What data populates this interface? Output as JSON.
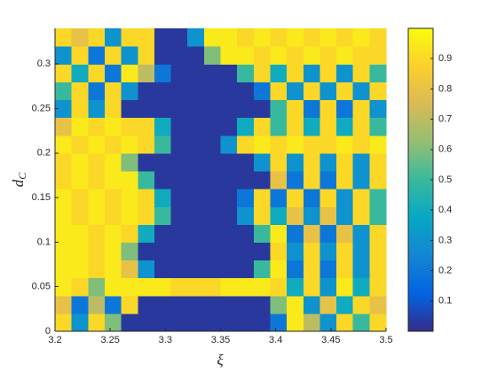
{
  "chart_data": {
    "type": "heatmap",
    "xlabel": "ξ",
    "ylabel": "d",
    "ylabel_subscript": "C",
    "colormap": "parula",
    "xlim": [
      3.2,
      3.5
    ],
    "ylim": [
      0,
      0.34
    ],
    "clim": [
      0,
      1
    ],
    "xticks": [
      3.2,
      3.25,
      3.3,
      3.35,
      3.4,
      3.45,
      3.5
    ],
    "yticks": [
      0,
      0.05,
      0.1,
      0.15,
      0.2,
      0.25,
      0.3
    ],
    "cticks": [
      0.1,
      0.2,
      0.3,
      0.4,
      0.5,
      0.6,
      0.7,
      0.8,
      0.9
    ],
    "x": [
      3.2075,
      3.2225,
      3.2375,
      3.2525,
      3.2675,
      3.2825,
      3.2975,
      3.3125,
      3.3275,
      3.3425,
      3.3575,
      3.3725,
      3.3875,
      3.4025,
      3.4175,
      3.4325,
      3.4475,
      3.4625,
      3.4775,
      3.4925
    ],
    "y": [
      0.01,
      0.03,
      0.05,
      0.07,
      0.09,
      0.11,
      0.13,
      0.15,
      0.17,
      0.19,
      0.21,
      0.23,
      0.25,
      0.27,
      0.29,
      0.31,
      0.33
    ],
    "z": [
      [
        0.9,
        0.3,
        0.9,
        0.6,
        0.03,
        0.03,
        0.03,
        0.03,
        0.03,
        0.03,
        0.03,
        0.03,
        0.03,
        0.2,
        0.95,
        0.7,
        0.3,
        0.9,
        0.5,
        0.9
      ],
      [
        0.8,
        0.2,
        0.7,
        0.2,
        0.9,
        0.03,
        0.03,
        0.03,
        0.03,
        0.03,
        0.03,
        0.03,
        0.03,
        0.6,
        0.95,
        0.3,
        0.8,
        0.4,
        0.9,
        0.8
      ],
      [
        0.95,
        0.9,
        0.6,
        0.95,
        0.95,
        0.95,
        0.95,
        0.9,
        0.9,
        0.9,
        0.95,
        0.95,
        0.95,
        0.9,
        0.4,
        0.9,
        0.3,
        0.95,
        0.4,
        0.9
      ],
      [
        0.95,
        0.95,
        0.9,
        0.95,
        0.8,
        0.3,
        0.03,
        0.03,
        0.03,
        0.03,
        0.03,
        0.03,
        0.5,
        0.95,
        0.2,
        0.9,
        0.2,
        0.9,
        0.3,
        0.9
      ],
      [
        0.95,
        0.95,
        0.9,
        0.95,
        0.6,
        0.03,
        0.03,
        0.03,
        0.03,
        0.03,
        0.03,
        0.03,
        0.03,
        0.9,
        0.3,
        0.9,
        0.3,
        0.9,
        0.3,
        0.9
      ],
      [
        0.95,
        0.95,
        0.9,
        0.95,
        0.9,
        0.4,
        0.03,
        0.03,
        0.03,
        0.03,
        0.03,
        0.03,
        0.5,
        0.95,
        0.2,
        0.8,
        0.2,
        0.8,
        0.3,
        0.9
      ],
      [
        0.95,
        0.9,
        0.95,
        0.9,
        0.95,
        0.9,
        0.5,
        0.03,
        0.03,
        0.03,
        0.03,
        0.3,
        0.9,
        0.4,
        0.8,
        0.3,
        0.8,
        0.3,
        0.9,
        0.5
      ],
      [
        0.95,
        0.9,
        0.95,
        0.9,
        0.95,
        0.9,
        0.4,
        0.03,
        0.03,
        0.03,
        0.03,
        0.2,
        0.9,
        0.2,
        0.9,
        0.2,
        0.9,
        0.3,
        0.9,
        0.5
      ],
      [
        0.9,
        0.95,
        0.9,
        0.95,
        0.95,
        0.5,
        0.03,
        0.03,
        0.03,
        0.03,
        0.03,
        0.03,
        0.03,
        0.8,
        0.2,
        0.9,
        0.2,
        0.9,
        0.3,
        0.9
      ],
      [
        0.9,
        0.95,
        0.9,
        0.95,
        0.6,
        0.03,
        0.03,
        0.03,
        0.03,
        0.03,
        0.03,
        0.03,
        0.3,
        0.9,
        0.3,
        0.9,
        0.3,
        0.9,
        0.3,
        0.9
      ],
      [
        0.95,
        0.9,
        0.95,
        0.9,
        0.95,
        0.9,
        0.5,
        0.03,
        0.03,
        0.03,
        0.3,
        0.9,
        0.95,
        0.9,
        0.95,
        0.9,
        0.9,
        0.95,
        0.9,
        0.95
      ],
      [
        0.8,
        0.95,
        0.9,
        0.95,
        0.9,
        0.9,
        0.4,
        0.03,
        0.03,
        0.03,
        0.03,
        0.4,
        0.9,
        0.5,
        0.9,
        0.4,
        0.9,
        0.4,
        0.9,
        0.5
      ],
      [
        0.3,
        0.9,
        0.3,
        0.9,
        0.03,
        0.03,
        0.03,
        0.03,
        0.03,
        0.03,
        0.03,
        0.03,
        0.03,
        0.5,
        0.9,
        0.2,
        0.9,
        0.2,
        0.9,
        0.3
      ],
      [
        0.5,
        0.9,
        0.2,
        0.9,
        0.3,
        0.03,
        0.03,
        0.03,
        0.03,
        0.03,
        0.03,
        0.03,
        0.2,
        0.9,
        0.3,
        0.9,
        0.3,
        0.9,
        0.3,
        0.9
      ],
      [
        0.9,
        0.4,
        0.9,
        0.2,
        0.95,
        0.7,
        0.2,
        0.03,
        0.03,
        0.03,
        0.03,
        0.5,
        0.9,
        0.4,
        0.9,
        0.3,
        0.9,
        0.3,
        0.9,
        0.5
      ],
      [
        0.3,
        0.9,
        0.2,
        0.9,
        0.3,
        0.9,
        0.03,
        0.03,
        0.03,
        0.6,
        0.95,
        0.95,
        0.9,
        0.95,
        0.9,
        0.95,
        0.9,
        0.95,
        0.9,
        0.9
      ],
      [
        0.9,
        0.8,
        0.9,
        0.3,
        0.9,
        0.9,
        0.03,
        0.03,
        0.3,
        0.95,
        0.95,
        0.9,
        0.95,
        0.9,
        0.95,
        0.9,
        0.95,
        0.9,
        0.95,
        0.9
      ]
    ]
  }
}
